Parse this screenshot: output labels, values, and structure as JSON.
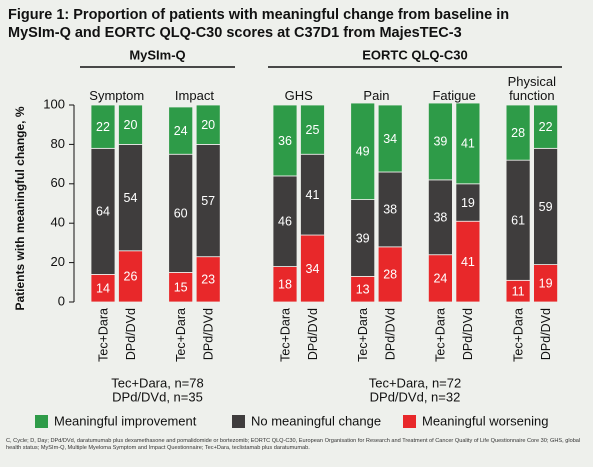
{
  "chart_data": {
    "type": "stacked_bar",
    "title": "Figure 1: Proportion of patients with meaningful change from baseline in MySIm-Q and EORTC QLQ-C30 scores at C37D1 from MajesTEC-3",
    "y_label": "Patients with meaningful change, %",
    "ylim": [
      0,
      100
    ],
    "yticks": [
      0,
      20,
      40,
      60,
      80,
      100
    ],
    "sections": [
      {
        "title": "MySIm-Q",
        "subgroups": [
          "Symptom",
          "Impact"
        ],
        "notes": [
          "Tec+Dara, n=78",
          "DPd/DVd, n=35"
        ]
      },
      {
        "title": "EORTC QLQ-C30",
        "subgroups": [
          "GHS",
          "Pain",
          "Fatigue",
          "Physical function"
        ],
        "notes": [
          "Tec+Dara, n=72",
          "DPd/DVd, n=32"
        ]
      }
    ],
    "categories": [
      "Tec+Dara",
      "DPd/DVd",
      "Tec+Dara",
      "DPd/DVd",
      "Tec+Dara",
      "DPd/DVd",
      "Tec+Dara",
      "DPd/DVd",
      "Tec+Dara",
      "DPd/DVd",
      "Tec+Dara",
      "DPd/DVd"
    ],
    "series": [
      {
        "name": "Meaningful improvement",
        "color": "#2e9b48",
        "values": [
          22,
          20,
          24,
          20,
          36,
          25,
          49,
          34,
          39,
          41,
          28,
          22
        ]
      },
      {
        "name": "No meaningful change",
        "color": "#3f3d3d",
        "values": [
          64,
          54,
          60,
          57,
          46,
          41,
          39,
          38,
          38,
          19,
          61,
          59
        ]
      },
      {
        "name": "Meaningful worsening",
        "color": "#e8282a",
        "values": [
          14,
          26,
          15,
          23,
          18,
          34,
          13,
          28,
          24,
          41,
          11,
          19
        ]
      }
    ],
    "footnote": "C, Cycle; D, Day; DPd/DVd, daratumumab plus dexamethasone and pomalidomide or bortezomib; EORTC QLQ-C30, European Organisation for Research and Treatment of Cancer Quality of Life Questionnaire Core 30; GHS, global health status; MySIm-Q, Multiple Myeloma Symptom and Impact Questionnaire; Tec+Dara, teclistamab plus daratumumab."
  }
}
